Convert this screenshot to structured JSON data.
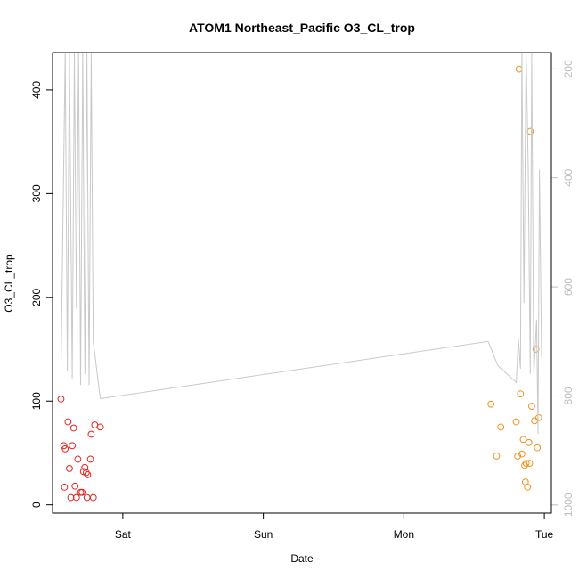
{
  "chart_data": {
    "type": "scatter",
    "title": "ATOM1 Northeast_Pacific O3_CL_trop",
    "xlabel": "Date",
    "ylabel": "O3_CL_trop",
    "x_ticks": [
      {
        "label": "Sat",
        "day": 1.0
      },
      {
        "label": "Sun",
        "day": 2.0
      },
      {
        "label": "Mon",
        "day": 3.0
      },
      {
        "label": "Tue",
        "day": 4.0
      }
    ],
    "xlim": [
      0.5,
      4.05
    ],
    "ylim": [
      -8,
      436
    ],
    "y_ticks": [
      0,
      100,
      200,
      300,
      400
    ],
    "y2_ticks": [
      200,
      400,
      600,
      800,
      1000
    ],
    "y2lim": [
      1015,
      170
    ],
    "grid": false,
    "series": [
      {
        "color": "#e8241f",
        "points": [
          [
            0.56,
            102
          ],
          [
            0.58,
            57
          ],
          [
            0.59,
            54
          ],
          [
            0.585,
            17
          ],
          [
            0.61,
            80
          ],
          [
            0.62,
            35
          ],
          [
            0.63,
            7
          ],
          [
            0.64,
            57
          ],
          [
            0.65,
            74
          ],
          [
            0.66,
            18
          ],
          [
            0.67,
            7
          ],
          [
            0.68,
            44
          ],
          [
            0.7,
            12
          ],
          [
            0.71,
            12
          ],
          [
            0.72,
            32
          ],
          [
            0.73,
            36
          ],
          [
            0.74,
            31
          ],
          [
            0.745,
            7
          ],
          [
            0.75,
            29
          ],
          [
            0.77,
            44
          ],
          [
            0.775,
            68
          ],
          [
            0.79,
            7
          ],
          [
            0.8,
            77
          ],
          [
            0.84,
            75
          ]
        ]
      },
      {
        "color": "#f2921f",
        "points": [
          [
            3.62,
            97
          ],
          [
            3.66,
            47
          ],
          [
            3.69,
            75
          ],
          [
            3.8,
            80
          ],
          [
            3.81,
            47
          ],
          [
            3.82,
            420
          ],
          [
            3.83,
            107
          ],
          [
            3.84,
            49
          ],
          [
            3.85,
            63
          ],
          [
            3.86,
            38
          ],
          [
            3.865,
            22
          ],
          [
            3.87,
            40
          ],
          [
            3.88,
            17
          ],
          [
            3.89,
            60
          ],
          [
            3.895,
            40
          ],
          [
            3.9,
            360
          ],
          [
            3.91,
            95
          ],
          [
            3.93,
            81
          ],
          [
            3.94,
            150
          ],
          [
            3.95,
            55
          ],
          [
            3.96,
            84
          ]
        ]
      },
      {
        "color": "#c9c9c9",
        "axis": "right",
        "style": "line",
        "points": [
          [
            0.56,
            750
          ],
          [
            0.59,
            170
          ],
          [
            0.605,
            755
          ],
          [
            0.62,
            170
          ],
          [
            0.64,
            770
          ],
          [
            0.655,
            170
          ],
          [
            0.67,
            640
          ],
          [
            0.685,
            170
          ],
          [
            0.7,
            780
          ],
          [
            0.715,
            170
          ],
          [
            0.73,
            760
          ],
          [
            0.745,
            170
          ],
          [
            0.76,
            780
          ],
          [
            0.775,
            170
          ],
          [
            0.79,
            700
          ],
          [
            0.84,
            805
          ],
          [
            3.6,
            700
          ],
          [
            3.67,
            745
          ],
          [
            3.8,
            775
          ],
          [
            3.815,
            695
          ],
          [
            3.83,
            750
          ],
          [
            3.84,
            170
          ],
          [
            3.855,
            630
          ],
          [
            3.87,
            170
          ],
          [
            3.885,
            380
          ],
          [
            3.9,
            760
          ],
          [
            3.91,
            170
          ],
          [
            3.925,
            760
          ],
          [
            3.945,
            660
          ],
          [
            3.955,
            870
          ],
          [
            3.965,
            385
          ],
          [
            3.98,
            730
          ]
        ]
      }
    ]
  }
}
